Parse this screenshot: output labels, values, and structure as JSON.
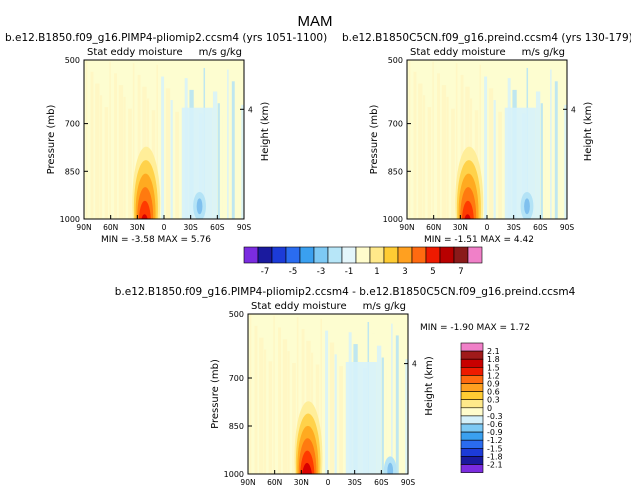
{
  "title": "MAM",
  "colors": {
    "background": "#ffffff",
    "field": "#fdfdd0",
    "field_alt": "#fff6c2",
    "neg_light": "#d6f2fb",
    "neg_mid": "#b4e3f6",
    "neg_dark": "#7fc0ee",
    "pos_palette": [
      "#ffee99",
      "#ffd24a",
      "#ffaa20",
      "#ff7a10",
      "#ff3a00",
      "#d80000",
      "#900000"
    ]
  },
  "chart_data": [
    {
      "type": "heatmap",
      "panel": "top-left",
      "case_title": "b.e12.B1850.f09_g16.PIMP4-pliomip2.ccsm4",
      "years": "(yrs 1051-1100)",
      "field_label": "Stat eddy moisture",
      "units": "m/s g/kg",
      "ylabel": "Pressure (mb)",
      "ylabel_right": "Height (km)",
      "y_ticks": [
        "500",
        "700",
        "850",
        "1000"
      ],
      "y_tick_values": [
        500,
        700,
        850,
        1000
      ],
      "right_tick": "4",
      "x_ticks": [
        "90N",
        "60N",
        "30N",
        "0",
        "30S",
        "60S",
        "90S"
      ],
      "x_tick_values": [
        90,
        60,
        30,
        0,
        -30,
        -60,
        -90
      ],
      "min_label": "MIN = ",
      "min": "-3.58",
      "max_label": "MAX = ",
      "max": "5.76",
      "peak": {
        "lat": 20,
        "pressure": 950,
        "value": 5.76
      },
      "trough": {
        "lat": -40,
        "pressure": 960,
        "value": -3.58
      }
    },
    {
      "type": "heatmap",
      "panel": "top-right",
      "case_title": "b.e12.B1850C5CN.f09_g16.preind.ccsm4",
      "years": "(yrs 130-179)",
      "field_label": "Stat eddy moisture",
      "units": "m/s g/kg",
      "ylabel": "Pressure (mb)",
      "ylabel_right": "Height (km)",
      "y_ticks": [
        "500",
        "700",
        "850",
        "1000"
      ],
      "y_tick_values": [
        500,
        700,
        850,
        1000
      ],
      "right_tick": "4",
      "x_ticks": [
        "90N",
        "60N",
        "30N",
        "0",
        "30S",
        "60S",
        "90S"
      ],
      "x_tick_values": [
        90,
        60,
        30,
        0,
        -30,
        -60,
        -90
      ],
      "min_label": "MIN = ",
      "min": "-1.51",
      "max_label": "MAX = ",
      "max": "4.42",
      "peak": {
        "lat": 20,
        "pressure": 950,
        "value": 4.42
      },
      "trough": {
        "lat": -45,
        "pressure": 960,
        "value": -1.51
      }
    },
    {
      "type": "heatmap",
      "panel": "bottom-difference",
      "case_title": "b.e12.B1850.f09_g16.PIMP4-pliomip2.ccsm4 - b.e12.B1850C5CN.f09_g16.preind.ccsm4",
      "field_label": "Stat eddy moisture",
      "units": "m/s g/kg",
      "ylabel": "Pressure (mb)",
      "ylabel_right": "Height (km)",
      "y_ticks": [
        "500",
        "700",
        "850",
        "1000"
      ],
      "y_tick_values": [
        500,
        700,
        850,
        1000
      ],
      "right_tick": "4",
      "x_ticks": [
        "90N",
        "60N",
        "30N",
        "0",
        "30S",
        "60S",
        "90S"
      ],
      "x_tick_values": [
        90,
        60,
        30,
        0,
        -30,
        -60,
        -90
      ],
      "min_label": "MIN = ",
      "min": "-1.90",
      "max_label": "MAX = ",
      "max": "1.72",
      "peak": {
        "lat": 22,
        "pressure": 950,
        "value": 1.72
      },
      "trough": {
        "lat": -70,
        "pressure": 990,
        "value": -1.9
      }
    }
  ],
  "top_colorbar": {
    "labels": [
      "-7",
      "-5",
      "-3",
      "-1",
      "1",
      "3",
      "5",
      "7"
    ],
    "colors": [
      "#7b2ce0",
      "#1a1a9e",
      "#1c3bd8",
      "#2a6cf0",
      "#3aa0f0",
      "#7dc9f4",
      "#b7e6f8",
      "#e4f6fb",
      "#fffccc",
      "#ffe98a",
      "#ffcc33",
      "#ffa020",
      "#ff6a10",
      "#ee1a00",
      "#b80000",
      "#8a1a1a",
      "#f080c8"
    ]
  },
  "diff_colorbar": {
    "labels": [
      "2.1",
      "1.8",
      "1.5",
      "1.2",
      "0.9",
      "0.6",
      "0.3",
      "0",
      "-0.3",
      "-0.6",
      "-0.9",
      "-1.2",
      "-1.5",
      "-1.8",
      "-2.1"
    ],
    "colors": [
      "#f080c8",
      "#a01a1a",
      "#c80000",
      "#ee1a00",
      "#ff6a10",
      "#ffa020",
      "#ffcc33",
      "#ffe98a",
      "#fffccc",
      "#d4f0fa",
      "#7dc9f4",
      "#3aa0f0",
      "#2a6cf0",
      "#1c3bd8",
      "#1a1a9e",
      "#7b2ce0"
    ]
  }
}
